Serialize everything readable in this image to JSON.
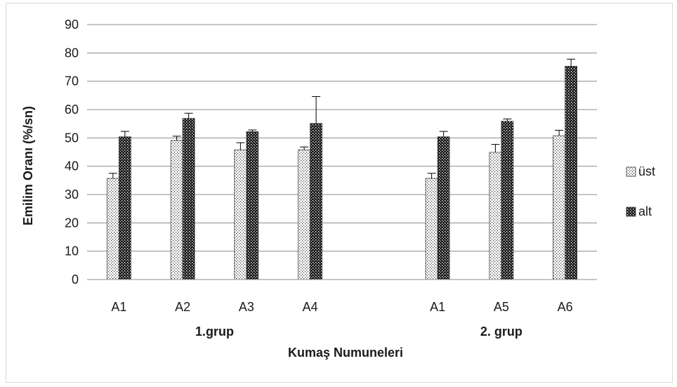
{
  "chart_data": {
    "type": "bar",
    "title": "",
    "xlabel": "Kumaş Numuneleri",
    "ylabel": "Emilim Oranı (%/sn)",
    "ylim": [
      0,
      90
    ],
    "yticks": [
      0,
      10,
      20,
      30,
      40,
      50,
      60,
      70,
      80,
      90
    ],
    "grid": true,
    "legend_position": "right",
    "categories": [
      "A1",
      "A2",
      "A3",
      "A4",
      "A1",
      "A5",
      "A6"
    ],
    "groups": [
      {
        "label": "1.grup",
        "categories": [
          "A1",
          "A2",
          "A3",
          "A4"
        ]
      },
      {
        "label": "2. grup",
        "categories": [
          "A1",
          "A5",
          "A6"
        ]
      }
    ],
    "series": [
      {
        "name": "üst",
        "pattern": "light-dots",
        "values": [
          35.7,
          49.1,
          45.8,
          45.8,
          35.7,
          44.9,
          50.8
        ],
        "errors": [
          1.8,
          1.5,
          2.5,
          1.0,
          1.8,
          2.8,
          1.9
        ]
      },
      {
        "name": "alt",
        "pattern": "dark-dots",
        "values": [
          50.4,
          56.9,
          52.2,
          55.1,
          50.4,
          55.9,
          75.3
        ],
        "errors": [
          1.9,
          1.8,
          0.6,
          9.5,
          1.9,
          0.8,
          2.5
        ]
      }
    ]
  }
}
